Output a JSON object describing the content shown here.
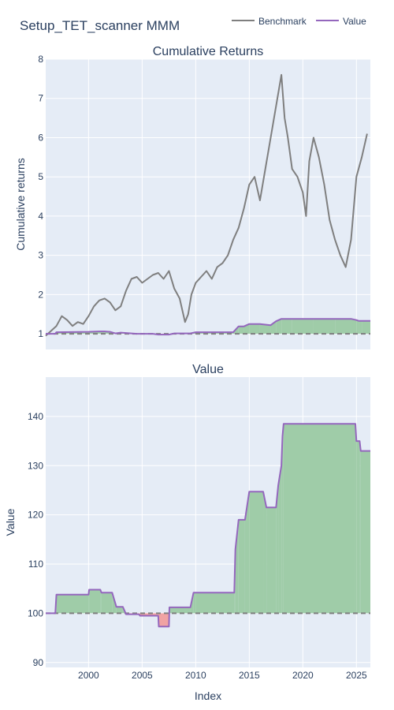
{
  "title": "Setup_TET_scanner MMM",
  "legend": [
    {
      "name": "Benchmark",
      "color": "#7f7f7f"
    },
    {
      "name": "Value",
      "color": "#9467bd"
    }
  ],
  "colors": {
    "plot_bg": "#e5ecf6",
    "grid": "#ffffff",
    "text": "#2a3f5f",
    "gain_fill": "#9fcca8",
    "loss_fill": "#f0a3a3",
    "baseline": "#7f7f7f"
  },
  "chart_data": [
    {
      "type": "line",
      "title": "Cumulative Returns",
      "xlabel": "",
      "ylabel": "Cumulative returns",
      "xlim": [
        1996.0,
        2026.3
      ],
      "ylim": [
        0.6,
        8.0
      ],
      "yticks": [
        1,
        2,
        3,
        4,
        5,
        6,
        7,
        8
      ],
      "baseline": 1.0,
      "series": [
        {
          "name": "Benchmark",
          "x": [
            1996.0,
            1997.0,
            1997.5,
            1998.0,
            1998.5,
            1999.0,
            1999.5,
            2000.0,
            2000.5,
            2001.0,
            2001.5,
            2002.0,
            2002.5,
            2003.0,
            2003.5,
            2004.0,
            2004.5,
            2005.0,
            2005.5,
            2006.0,
            2006.5,
            2007.0,
            2007.5,
            2008.0,
            2008.5,
            2009.0,
            2009.3,
            2009.6,
            2010.0,
            2010.5,
            2011.0,
            2011.5,
            2012.0,
            2012.5,
            2013.0,
            2013.5,
            2014.0,
            2014.5,
            2015.0,
            2015.5,
            2016.0,
            2016.5,
            2017.0,
            2017.5,
            2018.0,
            2018.3,
            2018.6,
            2019.0,
            2019.5,
            2020.0,
            2020.3,
            2020.6,
            2021.0,
            2021.5,
            2022.0,
            2022.5,
            2023.0,
            2023.5,
            2024.0,
            2024.5,
            2025.0,
            2025.5,
            2026.0
          ],
          "y": [
            0.95,
            1.2,
            1.45,
            1.35,
            1.2,
            1.3,
            1.25,
            1.45,
            1.7,
            1.85,
            1.9,
            1.8,
            1.6,
            1.7,
            2.1,
            2.4,
            2.45,
            2.3,
            2.4,
            2.5,
            2.55,
            2.4,
            2.6,
            2.15,
            1.9,
            1.3,
            1.5,
            2.0,
            2.3,
            2.45,
            2.6,
            2.4,
            2.7,
            2.8,
            3.0,
            3.4,
            3.7,
            4.2,
            4.8,
            5.0,
            4.4,
            5.2,
            6.0,
            6.8,
            7.6,
            6.5,
            6.0,
            5.2,
            5.0,
            4.6,
            4.0,
            5.4,
            6.0,
            5.5,
            4.8,
            3.9,
            3.4,
            3.0,
            2.7,
            3.4,
            5.0,
            5.5,
            6.1
          ]
        },
        {
          "name": "Value",
          "x": [
            1996.0,
            1996.9,
            1997.0,
            2000.0,
            2001.0,
            2001.5,
            2002.0,
            2002.5,
            2003.0,
            2003.5,
            2004.0,
            2004.5,
            2005.0,
            2006.0,
            2006.5,
            2007.5,
            2008.0,
            2009.5,
            2010.0,
            2011.0,
            2013.5,
            2014.0,
            2014.5,
            2015.0,
            2016.0,
            2017.0,
            2017.5,
            2018.0,
            2019.0,
            2021.0,
            2023.0,
            2024.5,
            2025.0,
            2025.2,
            2025.5,
            2026.3
          ],
          "y": [
            1.0,
            1.0,
            1.04,
            1.05,
            1.06,
            1.06,
            1.05,
            1.01,
            1.03,
            1.02,
            1.01,
            1.0,
            1.0,
            1.0,
            0.98,
            0.98,
            1.01,
            1.01,
            1.04,
            1.04,
            1.04,
            1.19,
            1.19,
            1.25,
            1.25,
            1.22,
            1.32,
            1.38,
            1.38,
            1.38,
            1.38,
            1.38,
            1.35,
            1.33,
            1.33,
            1.33
          ]
        }
      ]
    },
    {
      "type": "area",
      "title": "Value",
      "xlabel": "Index",
      "ylabel": "Value",
      "xlim": [
        1996.0,
        2026.3
      ],
      "ylim": [
        89,
        148
      ],
      "xticks": [
        2000,
        2005,
        2010,
        2015,
        2020,
        2025
      ],
      "yticks": [
        90,
        100,
        110,
        120,
        130,
        140
      ],
      "baseline": 100,
      "series": [
        {
          "name": "Value",
          "x": [
            1996.0,
            1996.9,
            1997.0,
            2000.0,
            2000.05,
            2001.1,
            2001.2,
            2002.2,
            2002.6,
            2003.2,
            2003.5,
            2004.7,
            2004.8,
            2006.5,
            2006.55,
            2007.5,
            2007.55,
            2009.5,
            2009.8,
            2010.0,
            2013.6,
            2013.7,
            2014.0,
            2014.6,
            2015.0,
            2016.3,
            2016.6,
            2017.5,
            2017.7,
            2018.0,
            2018.1,
            2018.2,
            2024.9,
            2025.0,
            2025.3,
            2025.4,
            2026.3
          ],
          "y": [
            100,
            100,
            103.8,
            103.8,
            104.8,
            104.8,
            104.2,
            104.2,
            101.3,
            101.3,
            99.8,
            99.8,
            99.5,
            99.5,
            97.3,
            97.3,
            101.2,
            101.2,
            104.2,
            104.2,
            104.2,
            113.0,
            119.0,
            119.0,
            124.7,
            124.7,
            121.5,
            121.5,
            126.0,
            130.0,
            136.0,
            138.5,
            138.5,
            135.0,
            135.0,
            133.0,
            133.0
          ]
        }
      ]
    }
  ]
}
